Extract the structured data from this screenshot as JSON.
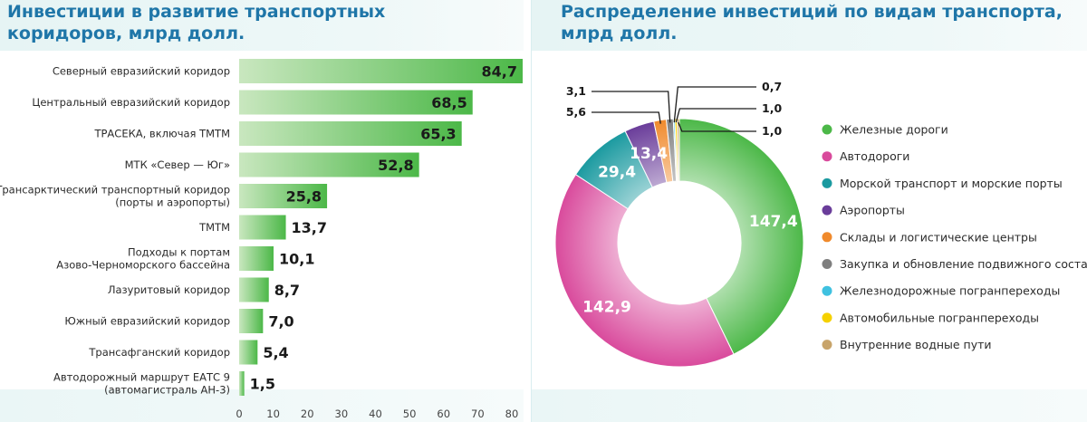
{
  "chart_data": [
    {
      "type": "bar",
      "orientation": "horizontal",
      "title": "Инвестиции в развитие транспортных коридоров, млрд долл.",
      "categories": [
        [
          "Северный евразийский коридор"
        ],
        [
          "Центральный евразийский коридор"
        ],
        [
          "ТРАСЕКА, включая ТМТМ"
        ],
        [
          "МТК «Север — Юг»"
        ],
        [
          "Трансарктический транспортный коридор",
          "(порты и аэропорты)"
        ],
        [
          "ТМТМ"
        ],
        [
          "Подходы к портам",
          "Азово-Черноморского бассейна"
        ],
        [
          "Лазуритовый коридор"
        ],
        [
          "Южный евразийский коридор"
        ],
        [
          "Трансафганский коридор"
        ],
        [
          "Автодорожный маршрут ЕАТС 9",
          "(автомагистраль АН-3)"
        ]
      ],
      "values": [
        84.7,
        68.5,
        65.3,
        52.8,
        25.8,
        13.7,
        10.1,
        8.7,
        7.0,
        5.4,
        1.5
      ],
      "value_labels": [
        "84,7",
        "68,5",
        "65,3",
        "52,8",
        "25,8",
        "13,7",
        "10,1",
        "8,7",
        "7,0",
        "5,4",
        "1,5"
      ],
      "xlim": [
        0,
        80
      ],
      "xticks": [
        "0",
        "10",
        "20",
        "30",
        "40",
        "50",
        "60",
        "70",
        "80"
      ],
      "grid": false,
      "colors": {
        "bar_start": "#c9e7bf",
        "bar_end": "#4cb848"
      }
    },
    {
      "type": "pie",
      "donut": true,
      "title": "Распределение инвестиций по видам транспорта, млрд долл.",
      "labels": [
        "Железные дороги",
        "Автодороги",
        "Морской транспорт и морские порты",
        "Аэропорты",
        "Склады и логистические центры",
        "Закупка и обновление подвижного состава",
        "Железнодорожные погранпереходы",
        "Автомобильные погранпереходы",
        "Внутренние водные пути"
      ],
      "values": [
        147.4,
        142.9,
        29.4,
        13.4,
        5.6,
        3.1,
        0.7,
        1.0,
        1.0
      ],
      "value_labels": [
        "147,4",
        "142,9",
        "29,4",
        "13,4",
        "5,6",
        "3,1",
        "0,7",
        "1,0",
        "1,0"
      ],
      "colors": [
        "#4cb848",
        "#d94a9c",
        "#1b9aa0",
        "#6a3d9a",
        "#f08a2c",
        "#7f7f7f",
        "#3fc1e0",
        "#f5d100",
        "#c8a46a"
      ],
      "legend_position": "right"
    }
  ]
}
